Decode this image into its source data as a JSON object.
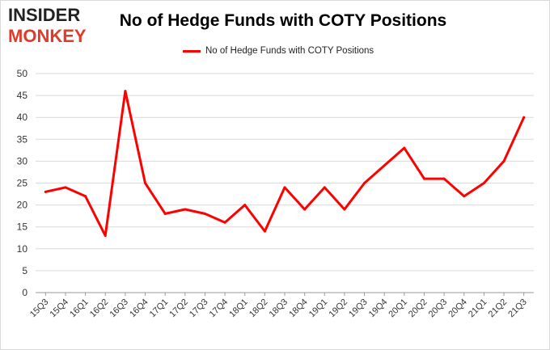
{
  "logo": {
    "line1": "INSIDER",
    "line2": "MONKEY"
  },
  "chart_data": {
    "type": "line",
    "title": "No of Hedge Funds with COTY Positions",
    "categories": [
      "15Q3",
      "15Q4",
      "16Q1",
      "16Q2",
      "16Q3",
      "16Q4",
      "17Q1",
      "17Q2",
      "17Q3",
      "17Q4",
      "18Q1",
      "18Q2",
      "18Q3",
      "18Q4",
      "19Q1",
      "19Q2",
      "19Q3",
      "19Q4",
      "20Q1",
      "20Q2",
      "20Q3",
      "20Q4",
      "21Q1",
      "21Q2",
      "21Q3"
    ],
    "series": [
      {
        "name": "No of Hedge Funds with COTY Positions",
        "color": "#ff0000",
        "values": [
          23,
          24,
          22,
          13,
          46,
          25,
          18,
          19,
          18,
          16,
          20,
          14,
          24,
          19,
          24,
          19,
          25,
          29,
          33,
          26,
          26,
          22,
          25,
          30,
          40
        ]
      }
    ],
    "ylim": [
      0,
      50
    ],
    "yticks": [
      0,
      5,
      10,
      15,
      20,
      25,
      30,
      35,
      40,
      45,
      50
    ],
    "xlabel": "",
    "ylabel": "",
    "grid": true,
    "legend": "top"
  }
}
